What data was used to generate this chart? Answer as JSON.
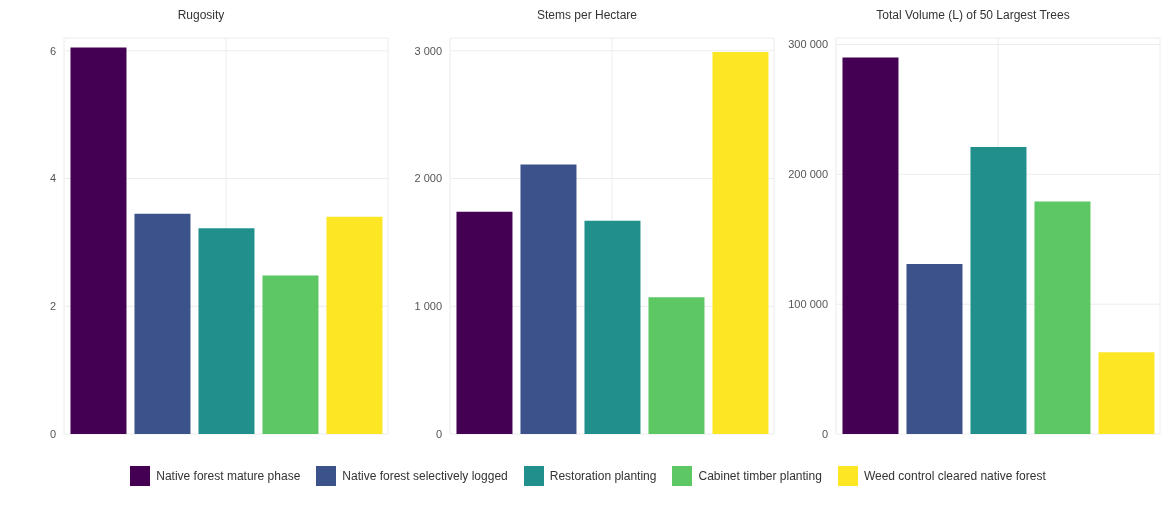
{
  "chart_data": [
    {
      "type": "bar",
      "title": "Rugosity",
      "categories": [
        null
      ],
      "ylim": [
        0,
        6.2
      ],
      "yticks": [
        0,
        2,
        4,
        6
      ],
      "grid": true,
      "legend": "bottom",
      "series": [
        {
          "name": "Native forest mature phase",
          "color": "#440154",
          "values": [
            6.05
          ]
        },
        {
          "name": "Native forest selectively logged",
          "color": "#3b528b",
          "values": [
            3.45
          ]
        },
        {
          "name": "Restoration planting",
          "color": "#21908c",
          "values": [
            3.22
          ]
        },
        {
          "name": "Cabinet timber planting",
          "color": "#5dc863",
          "values": [
            2.48
          ]
        },
        {
          "name": "Weed control cleared native forest",
          "color": "#fde725",
          "values": [
            3.4
          ]
        }
      ]
    },
    {
      "type": "bar",
      "title": "Stems per Hectare",
      "categories": [
        null
      ],
      "ylim": [
        0,
        3100
      ],
      "yticks": [
        0,
        {
          "value": 1000,
          "label": "1 000"
        },
        {
          "value": 2000,
          "label": "2 000"
        },
        {
          "value": 3000,
          "label": "3 000"
        }
      ],
      "grid": true,
      "series": [
        {
          "color": "#440154",
          "values": [
            1740
          ]
        },
        {
          "color": "#3b528b",
          "values": [
            2110
          ]
        },
        {
          "color": "#21908c",
          "values": [
            1670
          ]
        },
        {
          "color": "#5dc863",
          "values": [
            1070
          ]
        },
        {
          "color": "#fde725",
          "values": [
            2990
          ]
        }
      ]
    },
    {
      "type": "bar",
      "title": "Total Volume (L) of 50 Largest Trees",
      "categories": [
        null
      ],
      "ylim": [
        0,
        305000
      ],
      "yticks": [
        0,
        {
          "value": 100000,
          "label": "100 000"
        },
        {
          "value": 200000,
          "label": "200 000"
        },
        {
          "value": 300000,
          "label": "300 000"
        }
      ],
      "grid": true,
      "series": [
        {
          "color": "#440154",
          "values": [
            290000
          ]
        },
        {
          "color": "#3b528b",
          "values": [
            131000
          ]
        },
        {
          "color": "#21908c",
          "values": [
            221000
          ]
        },
        {
          "color": "#5dc863",
          "values": [
            179000
          ]
        },
        {
          "color": "#fde725",
          "values": [
            63000
          ]
        }
      ]
    }
  ]
}
